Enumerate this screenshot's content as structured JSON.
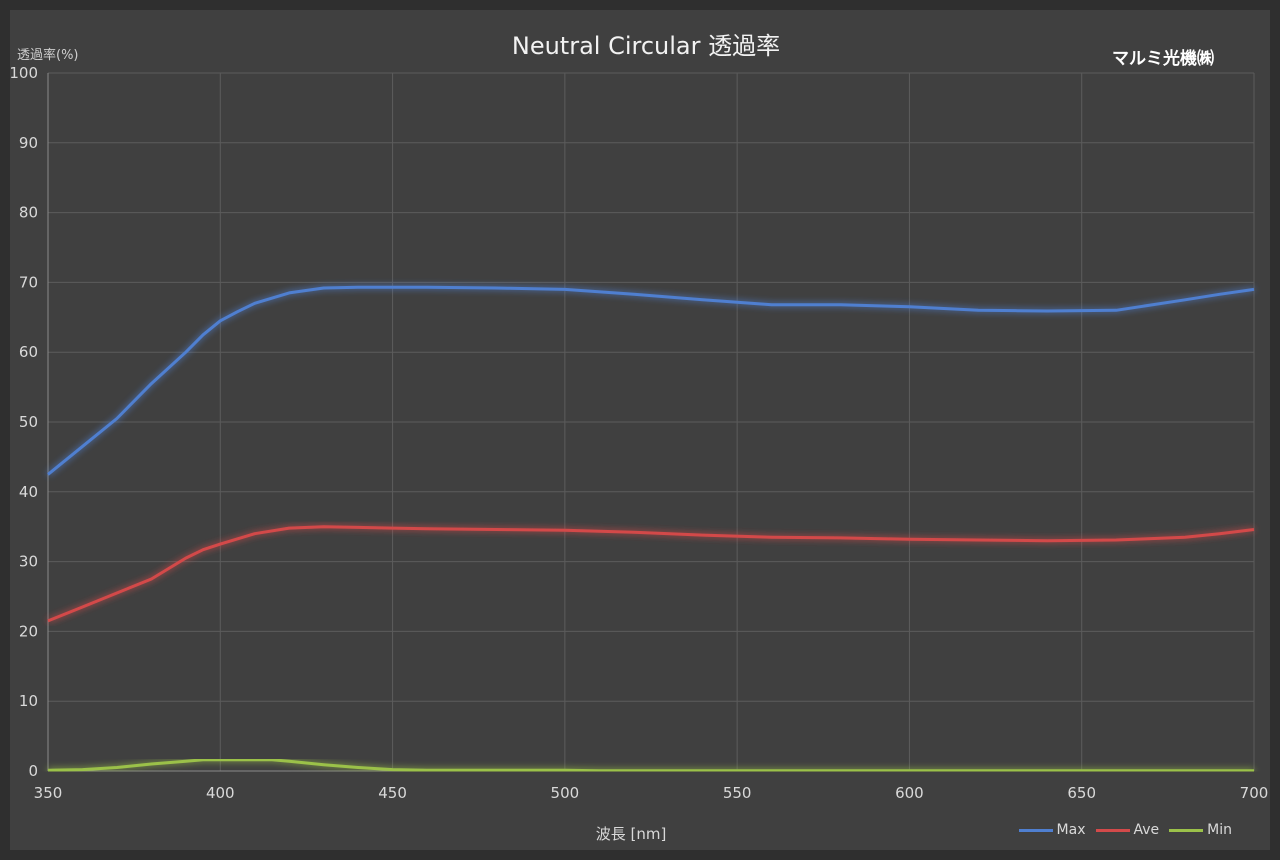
{
  "colors": {
    "max": "#4f7fd0",
    "ave": "#d34a4a",
    "min": "#9bc14a",
    "grid": "#5c5c5c",
    "background": "#404040"
  },
  "brand": "マルミ光機㈱",
  "chart_data": {
    "type": "line",
    "title": "Neutral Circular 透過率",
    "ylabel": "透過率(%)",
    "xlabel": "波長 [nm]",
    "xlim": [
      350,
      700
    ],
    "ylim": [
      0,
      100
    ],
    "x_ticks": [
      350,
      400,
      450,
      500,
      550,
      600,
      650,
      700
    ],
    "y_ticks": [
      0,
      10,
      20,
      30,
      40,
      50,
      60,
      70,
      80,
      90,
      100
    ],
    "grid": true,
    "legend_position": "bottom-right",
    "series": [
      {
        "name": "Max",
        "color": "#4f7fd0",
        "x": [
          350,
          360,
          370,
          380,
          390,
          395,
          400,
          405,
          410,
          420,
          430,
          440,
          450,
          460,
          480,
          500,
          520,
          540,
          560,
          580,
          600,
          620,
          640,
          660,
          680,
          690,
          700
        ],
        "y": [
          42.5,
          46.5,
          50.5,
          55.5,
          60,
          62.5,
          64.5,
          65.8,
          67,
          68.5,
          69.2,
          69.3,
          69.3,
          69.3,
          69.2,
          69,
          68.3,
          67.5,
          66.8,
          66.8,
          66.5,
          66,
          65.9,
          66,
          67.5,
          68.3,
          69
        ]
      },
      {
        "name": "Ave",
        "color": "#d34a4a",
        "x": [
          350,
          360,
          370,
          380,
          390,
          395,
          400,
          410,
          420,
          430,
          440,
          450,
          460,
          480,
          500,
          520,
          540,
          560,
          580,
          600,
          620,
          640,
          660,
          680,
          690,
          700
        ],
        "y": [
          21.5,
          23.5,
          25.5,
          27.5,
          30.5,
          31.7,
          32.5,
          34,
          34.8,
          35,
          34.9,
          34.8,
          34.7,
          34.6,
          34.5,
          34.2,
          33.8,
          33.5,
          33.4,
          33.2,
          33.1,
          33,
          33.1,
          33.5,
          34,
          34.6
        ]
      },
      {
        "name": "Min",
        "color": "#9bc14a",
        "x": [
          350,
          360,
          370,
          380,
          390,
          395,
          400,
          410,
          415,
          420,
          430,
          440,
          450,
          460,
          480,
          500,
          510,
          550,
          600,
          650,
          700
        ],
        "y": [
          0.1,
          0.2,
          0.5,
          1,
          1.4,
          1.6,
          1.6,
          1.6,
          1.6,
          1.4,
          0.9,
          0.5,
          0.2,
          0.1,
          0.1,
          0.1,
          0.05,
          0.05,
          0.05,
          0.05,
          0.05
        ]
      }
    ]
  }
}
